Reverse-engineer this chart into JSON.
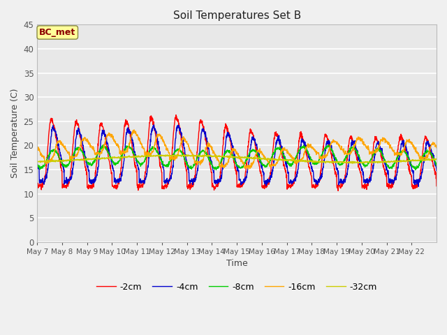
{
  "title": "Soil Temperatures Set B",
  "xlabel": "Time",
  "ylabel": "Soil Temperature (C)",
  "ylim": [
    0,
    45
  ],
  "yticks": [
    0,
    5,
    10,
    15,
    20,
    25,
    30,
    35,
    40,
    45
  ],
  "annotation": "BC_met",
  "annotation_color": "#8B0000",
  "annotation_bg": "#FFFF99",
  "series_colors": {
    "-2cm": "#FF0000",
    "-4cm": "#0000CD",
    "-8cm": "#00CC00",
    "-16cm": "#FFA500",
    "-32cm": "#CCCC00"
  },
  "x_tick_labels": [
    "May 7",
    "May 8",
    "May 9",
    "May 10",
    "May 11",
    "May 12",
    "May 13",
    "May 14",
    "May 15",
    "May 16",
    "May 17",
    "May 18",
    "May 19",
    "May 20",
    "May 21",
    "May 22"
  ],
  "fig_bg": "#F0F0F0",
  "plot_bg": "#E8E8E8",
  "grid_color": "#FFFFFF",
  "figsize": [
    6.4,
    4.8
  ],
  "dpi": 100
}
